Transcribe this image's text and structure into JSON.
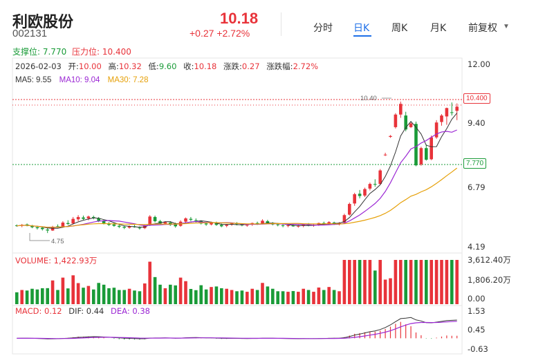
{
  "header": {
    "name": "利欧股份",
    "code": "002131",
    "price": "10.18",
    "change": "+0.27 +2.72%"
  },
  "tabs": [
    {
      "label": "分时",
      "active": false
    },
    {
      "label": "日K",
      "active": true
    },
    {
      "label": "周K",
      "active": false
    },
    {
      "label": "月K",
      "active": false
    },
    {
      "label": "前复权",
      "active": false,
      "dropdown": true
    }
  ],
  "levels": {
    "support_label": "支撑位: 7.770",
    "pressure_label": "压力位: 10.400",
    "support_tag": "7.770",
    "pressure_tag": "10.400",
    "peak_label": "10.40",
    "low_label": "4.75"
  },
  "ohlc": {
    "date": "2026-02-03",
    "open_label": "开:",
    "open": "10.00",
    "high_label": "高:",
    "high": "10.32",
    "low_label": "低:",
    "low": "9.60",
    "close_label": "收:",
    "close": "10.18",
    "chg_label": "涨跌:",
    "chg": "0.27",
    "pct_label": "涨跌幅:",
    "pct": "2.72%"
  },
  "ma": {
    "ma5": "MA5: 9.55",
    "ma10": "MA10: 9.04",
    "ma30": "MA30: 7.28"
  },
  "price_axis": [
    "12.00",
    "9.40",
    "6.79",
    "4.19"
  ],
  "volume": {
    "label": "VOLUME: 1,422.93万",
    "axis": [
      "3,612.40万",
      "1,806.20万",
      "0.00"
    ]
  },
  "macd": {
    "label_macd": "MACD: 0.12",
    "label_dif": "DIF: 0.44",
    "label_dea": "DEA: 0.38",
    "axis": [
      "1.53",
      "0.45",
      "-0.63"
    ]
  },
  "colors": {
    "up": "#e8333a",
    "down": "#1a9b38",
    "ma5": "#333333",
    "ma10": "#9b27d4",
    "ma30": "#e6a008",
    "accent": "#1e6fe8"
  },
  "chart_data": {
    "type": "candlestick",
    "x_last_date": "2026-02-03",
    "y_range": [
      4.19,
      12.0
    ],
    "support": 7.77,
    "pressure": 10.4,
    "candles": [
      [
        5.08,
        5.12,
        5.02,
        5.06
      ],
      [
        5.06,
        5.14,
        5.0,
        5.1
      ],
      [
        5.12,
        5.16,
        5.04,
        5.08
      ],
      [
        5.06,
        5.1,
        4.96,
        5.0
      ],
      [
        5.0,
        5.06,
        4.9,
        4.96
      ],
      [
        4.98,
        5.02,
        4.86,
        4.92
      ],
      [
        4.9,
        4.96,
        4.75,
        4.86
      ],
      [
        4.86,
        5.06,
        4.84,
        5.02
      ],
      [
        5.04,
        5.12,
        4.98,
        5.0
      ],
      [
        5.02,
        5.26,
        4.98,
        5.2
      ],
      [
        5.18,
        5.3,
        5.1,
        5.14
      ],
      [
        5.16,
        5.44,
        5.12,
        5.36
      ],
      [
        5.34,
        5.52,
        5.26,
        5.44
      ],
      [
        5.42,
        5.5,
        5.32,
        5.36
      ],
      [
        5.38,
        5.5,
        5.3,
        5.46
      ],
      [
        5.44,
        5.5,
        5.34,
        5.4
      ],
      [
        5.38,
        5.44,
        5.22,
        5.26
      ],
      [
        5.26,
        5.32,
        5.12,
        5.16
      ],
      [
        5.16,
        5.22,
        5.06,
        5.1
      ],
      [
        5.12,
        5.2,
        5.02,
        5.06
      ],
      [
        5.06,
        5.1,
        4.96,
        5.02
      ],
      [
        5.02,
        5.06,
        4.92,
        4.98
      ],
      [
        4.98,
        5.08,
        4.94,
        5.04
      ],
      [
        5.04,
        5.1,
        4.98,
        5.0
      ],
      [
        4.98,
        5.04,
        4.9,
        4.96
      ],
      [
        4.96,
        5.12,
        4.92,
        5.08
      ],
      [
        5.1,
        5.52,
        5.06,
        5.46
      ],
      [
        5.44,
        5.5,
        5.2,
        5.26
      ],
      [
        5.26,
        5.32,
        5.12,
        5.16
      ],
      [
        5.16,
        5.26,
        5.1,
        5.22
      ],
      [
        5.2,
        5.26,
        5.06,
        5.1
      ],
      [
        5.12,
        5.2,
        4.98,
        5.04
      ],
      [
        5.06,
        5.3,
        5.02,
        5.24
      ],
      [
        5.24,
        5.42,
        5.18,
        5.38
      ],
      [
        5.36,
        5.44,
        5.26,
        5.32
      ],
      [
        5.3,
        5.38,
        5.2,
        5.28
      ],
      [
        5.26,
        5.3,
        5.12,
        5.16
      ],
      [
        5.16,
        5.22,
        5.06,
        5.12
      ],
      [
        5.12,
        5.24,
        5.08,
        5.2
      ],
      [
        5.18,
        5.24,
        5.06,
        5.1
      ],
      [
        5.1,
        5.16,
        5.0,
        5.04
      ],
      [
        5.06,
        5.14,
        5.0,
        5.12
      ],
      [
        5.12,
        5.2,
        5.06,
        5.16
      ],
      [
        5.16,
        5.22,
        5.08,
        5.14
      ],
      [
        5.12,
        5.16,
        5.04,
        5.08
      ],
      [
        5.08,
        5.14,
        5.02,
        5.1
      ],
      [
        5.12,
        5.2,
        5.06,
        5.18
      ],
      [
        5.18,
        5.24,
        5.1,
        5.14
      ],
      [
        5.16,
        5.34,
        5.12,
        5.28
      ],
      [
        5.26,
        5.32,
        5.14,
        5.18
      ],
      [
        5.18,
        5.22,
        5.08,
        5.12
      ],
      [
        5.12,
        5.18,
        5.04,
        5.1
      ],
      [
        5.08,
        5.14,
        5.0,
        5.06
      ],
      [
        5.06,
        5.12,
        5.0,
        5.08
      ],
      [
        5.08,
        5.12,
        5.02,
        5.04
      ],
      [
        5.04,
        5.1,
        4.98,
        5.06
      ],
      [
        5.06,
        5.14,
        5.0,
        5.12
      ],
      [
        5.12,
        5.18,
        5.04,
        5.08
      ],
      [
        5.08,
        5.14,
        5.02,
        5.1
      ],
      [
        5.1,
        5.2,
        5.06,
        5.18
      ],
      [
        5.18,
        5.24,
        5.1,
        5.14
      ],
      [
        5.14,
        5.26,
        5.1,
        5.22
      ],
      [
        5.2,
        5.24,
        5.1,
        5.16
      ],
      [
        5.16,
        5.22,
        5.08,
        5.18
      ],
      [
        5.2,
        5.58,
        5.16,
        5.52
      ],
      [
        5.54,
        6.06,
        5.5,
        6.0
      ],
      [
        6.02,
        6.48,
        5.92,
        6.42
      ],
      [
        6.44,
        6.6,
        6.24,
        6.34
      ],
      [
        6.36,
        6.7,
        6.3,
        6.64
      ],
      [
        6.66,
        6.92,
        6.58,
        6.86
      ],
      [
        6.86,
        7.06,
        6.74,
        6.84
      ],
      [
        6.86,
        7.5,
        6.82,
        7.44
      ],
      [
        8.1,
        8.2,
        8.06,
        8.12
      ],
      [
        8.88,
        8.96,
        8.84,
        8.92
      ],
      [
        9.3,
        9.9,
        9.24,
        9.84
      ],
      [
        9.84,
        10.4,
        9.7,
        10.3
      ],
      [
        9.8,
        9.96,
        9.12,
        9.2
      ],
      [
        9.3,
        9.5,
        9.26,
        9.46
      ],
      [
        9.44,
        9.54,
        7.62,
        7.66
      ],
      [
        7.7,
        8.46,
        7.64,
        8.4
      ],
      [
        8.4,
        8.56,
        7.86,
        7.9
      ],
      [
        7.92,
        8.94,
        7.88,
        8.86
      ],
      [
        8.86,
        9.6,
        8.8,
        9.5
      ],
      [
        9.52,
        9.86,
        9.36,
        9.8
      ],
      [
        9.76,
        10.14,
        9.4,
        10.12
      ],
      [
        9.94,
        10.36,
        9.8,
        9.91
      ],
      [
        10.0,
        10.32,
        9.6,
        10.18
      ]
    ]
  }
}
